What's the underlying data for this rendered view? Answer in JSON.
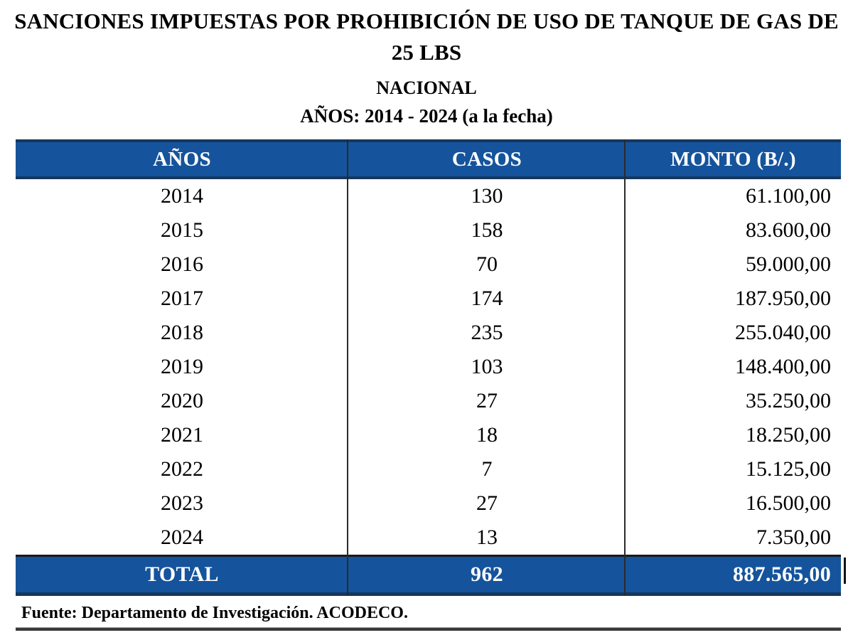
{
  "header": {
    "title": "SANCIONES IMPUESTAS POR PROHIBICIÓN DE USO DE TANQUE DE GAS DE 25 LBS",
    "subtitle": "NACIONAL",
    "period": "AÑOS: 2014 - 2024 (a la fecha)"
  },
  "table": {
    "columns": [
      "AÑOS",
      "CASOS",
      "MONTO (B/.)"
    ],
    "rows": [
      {
        "anio": "2014",
        "casos": "130",
        "monto": "61.100,00"
      },
      {
        "anio": "2015",
        "casos": "158",
        "monto": "83.600,00"
      },
      {
        "anio": "2016",
        "casos": "70",
        "monto": "59.000,00"
      },
      {
        "anio": "2017",
        "casos": "174",
        "monto": "187.950,00"
      },
      {
        "anio": "2018",
        "casos": "235",
        "monto": "255.040,00"
      },
      {
        "anio": "2019",
        "casos": "103",
        "monto": "148.400,00"
      },
      {
        "anio": "2020",
        "casos": "27",
        "monto": "35.250,00"
      },
      {
        "anio": "2021",
        "casos": "18",
        "monto": "18.250,00"
      },
      {
        "anio": "2022",
        "casos": "7",
        "monto": "15.125,00"
      },
      {
        "anio": "2023",
        "casos": "27",
        "monto": "16.500,00"
      },
      {
        "anio": "2024",
        "casos": "13",
        "monto": "7.350,00"
      }
    ],
    "total": {
      "label": "TOTAL",
      "casos": "962",
      "monto": "887.565,00"
    }
  },
  "footer": {
    "source": "Fuente: Departamento de Investigación. ACODECO."
  },
  "colors": {
    "header_bg": "#15549c",
    "border_navy": "#17365d",
    "divider": "#2a2a2a",
    "header_text": "#ffffff",
    "body_text": "#000000"
  }
}
